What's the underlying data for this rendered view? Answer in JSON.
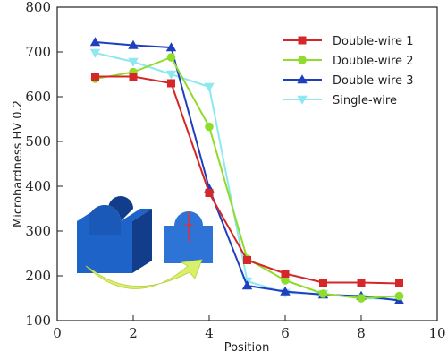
{
  "chart_data": {
    "type": "line",
    "xlabel": "Position",
    "ylabel": "Microhardness HV 0.2",
    "xlim": [
      0,
      10
    ],
    "ylim": [
      100,
      800
    ],
    "x_ticks": [
      "0",
      "2",
      "4",
      "6",
      "8",
      "10"
    ],
    "y_ticks": [
      "100",
      "200",
      "300",
      "400",
      "500",
      "600",
      "700",
      "800"
    ],
    "grid": false,
    "legend_position": "top-right",
    "x": [
      1,
      2,
      3,
      4,
      5,
      6,
      7,
      8,
      9
    ],
    "series": [
      {
        "name": "Double-wire 1",
        "color": "#d62728",
        "marker": "square",
        "values": [
          645,
          645,
          630,
          385,
          235,
          205,
          185,
          185,
          183
        ]
      },
      {
        "name": "Double-wire 2",
        "color": "#8fdc2a",
        "marker": "circle",
        "values": [
          640,
          655,
          688,
          533,
          238,
          190,
          160,
          150,
          155
        ]
      },
      {
        "name": "Double-wire 3",
        "color": "#1f3fbf",
        "marker": "triangle-up",
        "values": [
          722,
          715,
          710,
          395,
          178,
          165,
          158,
          155,
          145
        ]
      },
      {
        "name": "Single-wire",
        "color": "#8de8f0",
        "marker": "triangle-down",
        "values": [
          698,
          678,
          650,
          622,
          188,
          162,
          160,
          150,
          148
        ]
      }
    ]
  },
  "inset": {
    "block_color": "#1e63c8",
    "block_dark": "#123d8a",
    "section_color": "#2e73d6",
    "fusion_line_color": "#e0303a",
    "arrow_color": "#d8f06a"
  }
}
